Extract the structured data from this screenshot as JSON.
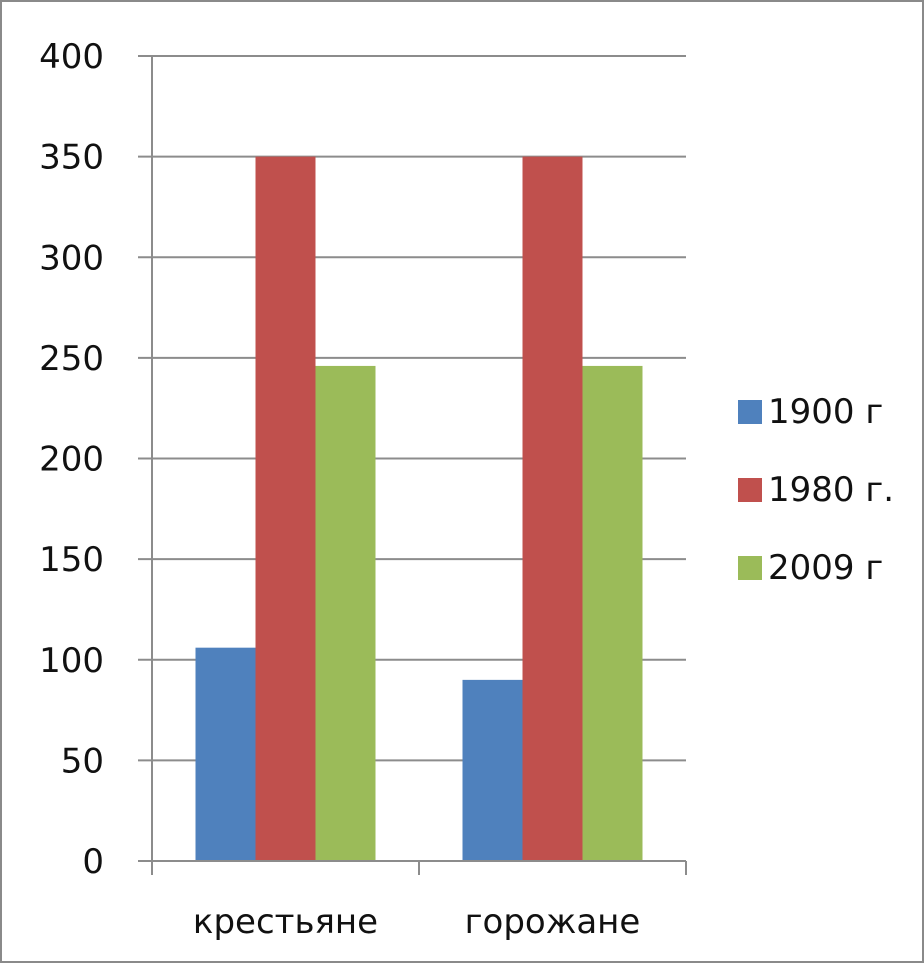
{
  "chart_data": {
    "type": "bar",
    "title": "",
    "xlabel": "",
    "ylabel": "",
    "categories": [
      "крестьяне",
      "горожане"
    ],
    "series": [
      {
        "name": "1900 г",
        "values": [
          106,
          90
        ],
        "color": "#4f81bd"
      },
      {
        "name": "1980 г.",
        "values": [
          350,
          350
        ],
        "color": "#c0504d"
      },
      {
        "name": "2009 г",
        "values": [
          246,
          246
        ],
        "color": "#9bbb59"
      }
    ],
    "ylim": [
      0,
      400
    ],
    "yticks": [
      "0",
      "50",
      "100",
      "150",
      "200",
      "250",
      "300",
      "350",
      "400"
    ],
    "grid": true,
    "legend": "right"
  }
}
